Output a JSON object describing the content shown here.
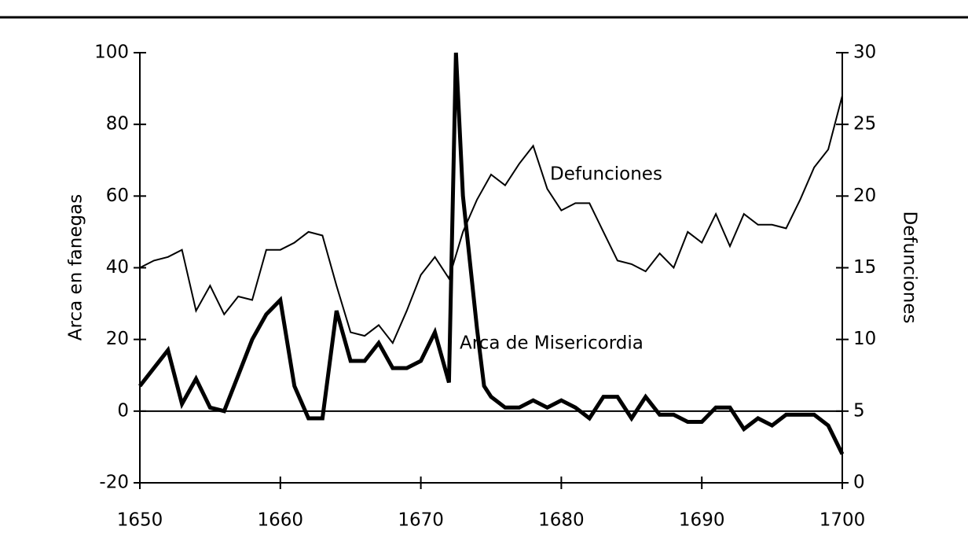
{
  "chart_data": {
    "type": "line",
    "xlabel": null,
    "ylabel": "Arca en fanegas",
    "y2label": "Defunciones",
    "xlim": [
      1650,
      1700
    ],
    "xticks": [
      1650,
      1660,
      1670,
      1680,
      1690,
      1700
    ],
    "ylim": [
      -20,
      100
    ],
    "yticks": [
      -20,
      0,
      20,
      40,
      60,
      80,
      100
    ],
    "y2lim": [
      0,
      30
    ],
    "y2ticks": [
      0,
      5,
      10,
      15,
      20,
      25,
      30
    ],
    "series": [
      {
        "name": "Defunciones",
        "color": "#000000",
        "axis": "y2",
        "x": [
          1650,
          1651,
          1652,
          1653,
          1654,
          1655,
          1656,
          1657,
          1658,
          1659,
          1660,
          1661,
          1662,
          1663,
          1664,
          1665,
          1666,
          1667,
          1668,
          1669,
          1670,
          1671,
          1672,
          1673,
          1674,
          1675,
          1676,
          1677,
          1678,
          1679,
          1680,
          1681,
          1682,
          1683,
          1684,
          1685,
          1686,
          1687,
          1688,
          1689,
          1690,
          1691,
          1692,
          1693,
          1694,
          1695,
          1696,
          1697,
          1698,
          1699,
          1700
        ],
        "values": [
          15,
          15.5,
          15.75,
          16.25,
          12,
          13.75,
          11.75,
          13,
          12.75,
          16.25,
          16.25,
          16.75,
          17.5,
          17.25,
          13.75,
          10.5,
          10.25,
          11,
          9.75,
          12,
          14.5,
          15.75,
          14.25,
          17.5,
          19.75,
          21.5,
          20.75,
          22.25,
          23.5,
          20.5,
          19,
          19.5,
          19.5,
          17.5,
          15.5,
          15.25,
          14.75,
          16,
          15,
          17.5,
          16.75,
          18.75,
          16.5,
          18.75,
          18,
          18,
          17.75,
          19.75,
          22,
          23.25,
          27
        ]
      },
      {
        "name": "Arca de Misericordia",
        "color": "#000000",
        "axis": "y",
        "x": [
          1650,
          1651,
          1652,
          1653,
          1654,
          1655,
          1656,
          1657,
          1658,
          1659,
          1660,
          1661,
          1662,
          1663,
          1664,
          1665,
          1666,
          1667,
          1668,
          1669,
          1670,
          1671,
          1672,
          1672.5,
          1673,
          1674,
          1674.5,
          1675,
          1676,
          1677,
          1678,
          1679,
          1680,
          1681,
          1682,
          1683,
          1684,
          1685,
          1686,
          1687,
          1688,
          1689,
          1690,
          1691,
          1692,
          1693,
          1694,
          1695,
          1696,
          1697,
          1698,
          1699,
          1700
        ],
        "values": [
          7,
          12,
          17,
          2,
          9,
          1,
          0,
          10,
          20,
          27,
          31,
          7,
          -2,
          -2,
          28,
          14,
          14,
          19,
          12,
          12,
          14,
          22,
          8,
          100,
          60,
          23,
          7,
          4,
          1,
          1,
          3,
          1,
          3,
          1,
          -2,
          4,
          4,
          -2,
          4,
          -1,
          -1,
          -3,
          -3,
          1,
          1,
          -5,
          -2,
          -4,
          -1,
          -1,
          -1,
          -4,
          -12
        ]
      }
    ]
  }
}
